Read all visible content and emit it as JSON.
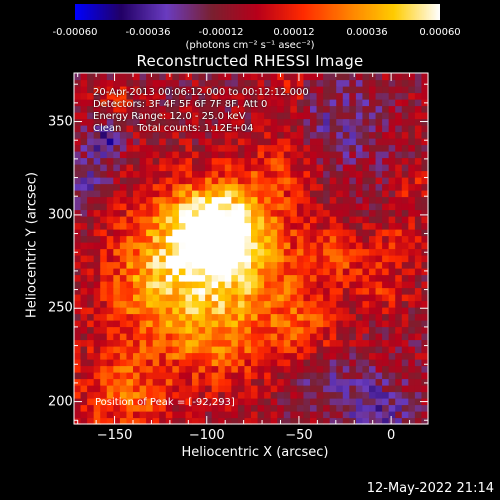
{
  "colorbar": {
    "colors": [
      "#0000ff",
      "#220066",
      "#6a3cc0",
      "#7a2030",
      "#b8001a",
      "#ff2a00",
      "#ff8000",
      "#ffcc00",
      "#ffffff"
    ],
    "ticks": [
      "-0.00060",
      "-0.00036",
      "-0.00012",
      "0.00012",
      "0.00036",
      "0.00060"
    ],
    "units": "(photons cm⁻² s⁻¹ asec⁻²)"
  },
  "annotations": {
    "time": "20-Apr-2013 00:06:12.000 to 00:12:12.000",
    "detectors": "Detectors: 3F 4F 5F 6F 7F 8F, Att 0",
    "energy": "Energy Range: 12.0 - 25.0 keV",
    "clean": "Clean     Total counts: 1.12E+04",
    "peak": "Position of Peak = [-92,293]"
  },
  "footer_date": "12-May-2022 21:14",
  "chart_data": {
    "type": "heatmap",
    "title": "Reconstructed RHESSI Image",
    "xlabel": "Heliocentric X (arcsec)",
    "ylabel": "Heliocentric Y (arcsec)",
    "xlim": [
      -172,
      20
    ],
    "ylim": [
      188,
      376
    ],
    "xticks": [
      -150,
      -100,
      -50,
      0
    ],
    "yticks": [
      200,
      250,
      300,
      350
    ],
    "zlim": [
      -0.0006,
      0.0006
    ],
    "peak": [
      -92,
      293
    ],
    "sources": [
      {
        "x": -92,
        "y": 293,
        "sigma": 16,
        "amp": 0.00062
      },
      {
        "x": -115,
        "y": 282,
        "sigma": 24,
        "amp": 0.0004
      },
      {
        "x": -75,
        "y": 262,
        "sigma": 28,
        "amp": 0.00032
      },
      {
        "x": -135,
        "y": 255,
        "sigma": 18,
        "amp": 0.0002
      },
      {
        "x": -60,
        "y": 325,
        "sigma": 14,
        "amp": 0.0002
      },
      {
        "x": -145,
        "y": 205,
        "sigma": 18,
        "amp": 0.0003
      },
      {
        "x": -100,
        "y": 232,
        "sigma": 18,
        "amp": 0.00022
      },
      {
        "x": -30,
        "y": 280,
        "sigma": 10,
        "amp": 0.00022
      },
      {
        "x": 5,
        "y": 287,
        "sigma": 10,
        "amp": 0.00016
      },
      {
        "x": 12,
        "y": 315,
        "sigma": 6,
        "amp": 0.00016
      },
      {
        "x": -5,
        "y": 262,
        "sigma": 10,
        "amp": 0.00018
      },
      {
        "x": -45,
        "y": 235,
        "sigma": 12,
        "amp": 0.00016
      },
      {
        "x": -150,
        "y": 362,
        "sigma": 6,
        "amp": 0.00022
      },
      {
        "x": -55,
        "y": 365,
        "sigma": 8,
        "amp": 0.00018
      }
    ],
    "negatives": [
      {
        "x": -165,
        "y": 320,
        "sigma": 10,
        "amp": -0.0002
      },
      {
        "x": -10,
        "y": 195,
        "sigma": 14,
        "amp": -0.00024
      },
      {
        "x": -40,
        "y": 215,
        "sigma": 12,
        "amp": -0.00016
      },
      {
        "x": -155,
        "y": 340,
        "sigma": 6,
        "amp": -0.0003
      },
      {
        "x": -30,
        "y": 350,
        "sigma": 18,
        "amp": -0.00016
      }
    ]
  }
}
